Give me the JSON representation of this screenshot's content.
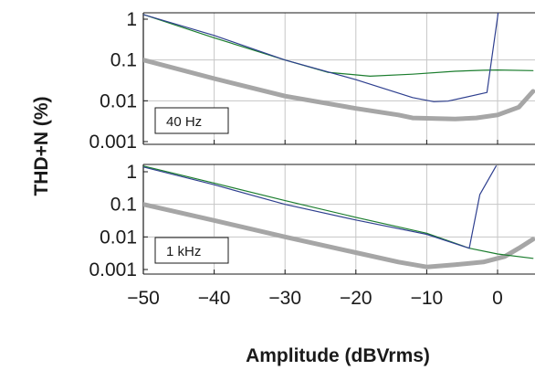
{
  "chart_data": {
    "type": "line",
    "ylabel": "THD+N (%)",
    "xlabel": "Amplitude (dBVrms)",
    "x_ticks": [
      "−50",
      "−40",
      "−30",
      "−20",
      "−10",
      "0"
    ],
    "y_ticks": [
      "1",
      "0.1",
      "0.01",
      "0.001"
    ],
    "y_scale": "log",
    "xlim": [
      -50,
      5
    ],
    "ylim": [
      0.001,
      1.5
    ],
    "grid": true,
    "series_colors": [
      "#2e3f8f",
      "#1b7d2e",
      "#a6a6a6"
    ],
    "panels": [
      {
        "label": "40 Hz",
        "series": [
          {
            "color": "#2e3f8f",
            "points": [
              [
                -50,
                1.3
              ],
              [
                -40,
                0.4
              ],
              [
                -30,
                0.1
              ],
              [
                -20,
                0.033
              ],
              [
                -12,
                0.012
              ],
              [
                -9,
                0.0095
              ],
              [
                -7,
                0.0098
              ],
              [
                -1.5,
                0.016
              ],
              [
                0.1,
                1.5
              ]
            ]
          },
          {
            "color": "#1b7d2e",
            "points": [
              [
                -50,
                1.3
              ],
              [
                -40,
                0.35
              ],
              [
                -30,
                0.1
              ],
              [
                -24,
                0.05
              ],
              [
                -18,
                0.04
              ],
              [
                -12,
                0.045
              ],
              [
                -6,
                0.053
              ],
              [
                -2,
                0.056
              ],
              [
                0,
                0.057
              ],
              [
                5,
                0.055
              ]
            ]
          },
          {
            "color": "#a6a6a6",
            "points": [
              [
                -50,
                0.1
              ],
              [
                -40,
                0.035
              ],
              [
                -30,
                0.013
              ],
              [
                -20,
                0.0065
              ],
              [
                -14,
                0.0045
              ],
              [
                -12,
                0.0038
              ],
              [
                -6,
                0.0036
              ],
              [
                -3,
                0.0038
              ],
              [
                0,
                0.0045
              ],
              [
                3,
                0.007
              ],
              [
                5,
                0.017
              ]
            ]
          }
        ]
      },
      {
        "label": "1 kHz",
        "series": [
          {
            "color": "#2e3f8f",
            "points": [
              [
                -50,
                1.4
              ],
              [
                -40,
                0.4
              ],
              [
                -30,
                0.1
              ],
              [
                -20,
                0.033
              ],
              [
                -10,
                0.012
              ],
              [
                -4,
                0.0045
              ],
              [
                -2.5,
                0.2
              ],
              [
                -0.2,
                1.5
              ]
            ]
          },
          {
            "color": "#1b7d2e",
            "points": [
              [
                -50,
                1.5
              ],
              [
                -40,
                0.45
              ],
              [
                -30,
                0.13
              ],
              [
                -20,
                0.04
              ],
              [
                -10,
                0.013
              ],
              [
                -4,
                0.0045
              ],
              [
                0,
                0.003
              ],
              [
                5,
                0.0022
              ]
            ]
          },
          {
            "color": "#a6a6a6",
            "points": [
              [
                -50,
                0.1
              ],
              [
                -40,
                0.032
              ],
              [
                -30,
                0.01
              ],
              [
                -20,
                0.0033
              ],
              [
                -14,
                0.0017
              ],
              [
                -10,
                0.0012
              ],
              [
                -6,
                0.0014
              ],
              [
                -2,
                0.0017
              ],
              [
                1,
                0.0025
              ],
              [
                3,
                0.0045
              ],
              [
                5,
                0.0085
              ]
            ]
          }
        ]
      }
    ]
  }
}
